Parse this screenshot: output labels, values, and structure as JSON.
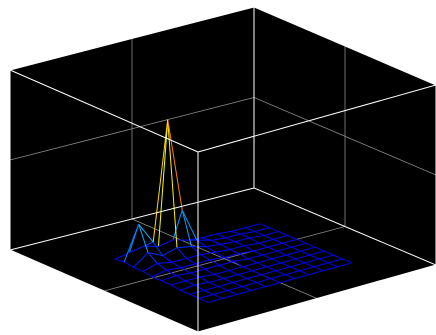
{
  "chart_data": {
    "type": "mesh",
    "background": "#000000",
    "box_color": "#ffffff",
    "grid": true,
    "box": true,
    "colormap": "jet",
    "x": [
      0,
      1,
      2,
      3,
      4,
      5,
      6,
      7,
      8,
      9,
      10
    ],
    "y": [
      0,
      1,
      2,
      3,
      4,
      5,
      6,
      7,
      8,
      9,
      10
    ],
    "z": [
      [
        0.02,
        0.03,
        0.02,
        0.02,
        0.01,
        0.01,
        0.01,
        0.0,
        0.0,
        0.0,
        0.0
      ],
      [
        0.04,
        0.28,
        0.1,
        0.05,
        0.03,
        0.02,
        0.01,
        0.01,
        0.0,
        0.0,
        0.0
      ],
      [
        0.06,
        0.12,
        0.05,
        0.03,
        0.02,
        0.01,
        0.01,
        0.0,
        0.0,
        0.0,
        0.0
      ],
      [
        0.03,
        1.0,
        0.08,
        0.03,
        0.02,
        0.01,
        0.0,
        0.0,
        0.0,
        0.0,
        0.0
      ],
      [
        0.05,
        0.3,
        0.06,
        0.03,
        0.02,
        0.01,
        0.0,
        0.0,
        0.0,
        0.0,
        0.0
      ],
      [
        0.02,
        0.05,
        0.03,
        0.02,
        0.01,
        0.01,
        0.0,
        0.0,
        0.0,
        0.0,
        0.0
      ],
      [
        0.01,
        0.02,
        0.02,
        0.01,
        0.01,
        0.0,
        0.0,
        0.0,
        0.0,
        0.0,
        0.0
      ],
      [
        0.01,
        0.01,
        0.01,
        0.01,
        0.0,
        0.0,
        0.0,
        0.0,
        0.0,
        0.0,
        0.0
      ],
      [
        0.0,
        0.01,
        0.01,
        0.0,
        0.0,
        0.0,
        0.0,
        0.0,
        0.0,
        0.0,
        0.0
      ],
      [
        0.0,
        0.0,
        0.0,
        0.0,
        0.0,
        0.0,
        0.0,
        0.0,
        0.0,
        0.0,
        0.0
      ],
      [
        0.0,
        0.0,
        0.0,
        0.0,
        0.0,
        0.0,
        0.0,
        0.0,
        0.0,
        0.0,
        0.0
      ]
    ],
    "zlim": [
      0,
      1
    ]
  }
}
